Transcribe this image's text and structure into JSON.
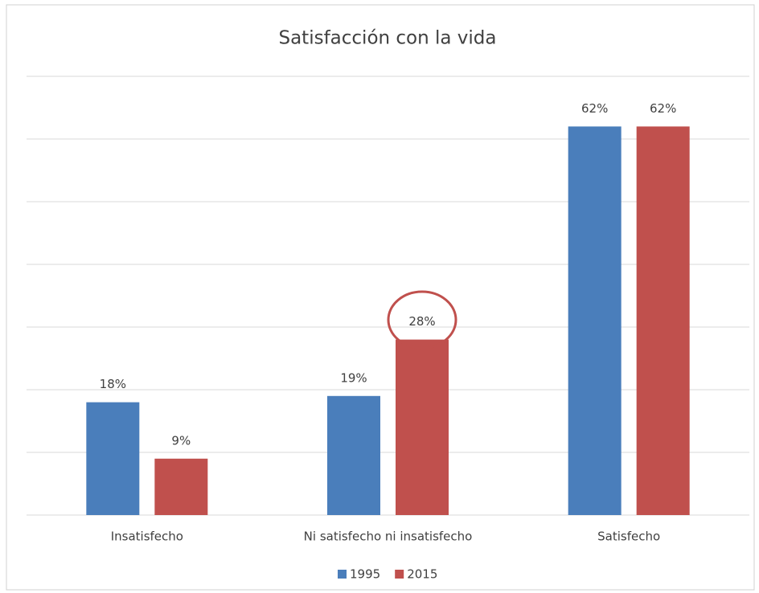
{
  "chart_data": {
    "type": "bar",
    "title": "Satisfacción con la vida",
    "categories": [
      "Insatisfecho",
      "Ni satisfecho ni insatisfecho",
      "Satisfecho"
    ],
    "series": [
      {
        "name": "1995",
        "color": "#4a7ebb",
        "values": [
          18,
          19,
          62
        ],
        "value_labels": [
          "18%",
          "19%",
          "62%"
        ]
      },
      {
        "name": "2015",
        "color": "#c0504d",
        "values": [
          9,
          28,
          62
        ],
        "value_labels": [
          "9%",
          "28%",
          "62%"
        ]
      }
    ],
    "ylim": [
      0,
      70
    ],
    "yticks": [
      0,
      10,
      20,
      30,
      40,
      50,
      60,
      70
    ],
    "grid": true,
    "legend": "bottom"
  }
}
